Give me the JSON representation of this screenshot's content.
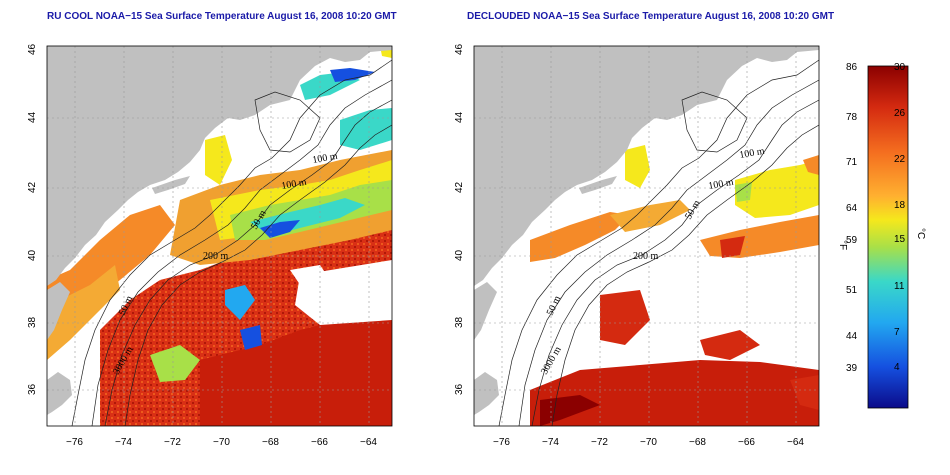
{
  "panels": [
    {
      "title": "RU COOL NOAA−15 Sea Surface Temperature August 16, 2008 10:20 GMT",
      "variant": "raw"
    },
    {
      "title": "DECLOUDED NOAA−15 Sea Surface Temperature August 16, 2008 10:20 GMT",
      "variant": "declouded"
    }
  ],
  "axes": {
    "lat_ticks": [
      "36",
      "38",
      "40",
      "42",
      "44",
      "46"
    ],
    "lon_ticks": [
      "−76",
      "−74",
      "−72",
      "−70",
      "−68",
      "−66",
      "−64"
    ]
  },
  "contours": {
    "labels": [
      "100 m",
      "100 m",
      "50 m",
      "200 m",
      "50 m",
      "3000 m"
    ]
  },
  "colorbar": {
    "unit_f": "°F",
    "unit_c": "°C",
    "f_ticks": [
      "86",
      "78",
      "71",
      "64",
      "59",
      "51",
      "44",
      "39"
    ],
    "c_ticks": [
      "30",
      "26",
      "22",
      "18",
      "15",
      "11",
      "7",
      "4"
    ],
    "colors": [
      "#8b0000",
      "#d42a10",
      "#f46d1f",
      "#ffb030",
      "#f5e81c",
      "#a8e048",
      "#3ad8c8",
      "#22a8f0",
      "#1550e0",
      "#0b0b8a"
    ]
  },
  "colors": {
    "land": "#c0c0c0",
    "ocean_no_data": "#ffffff",
    "title_text": "#1a1aa8"
  }
}
